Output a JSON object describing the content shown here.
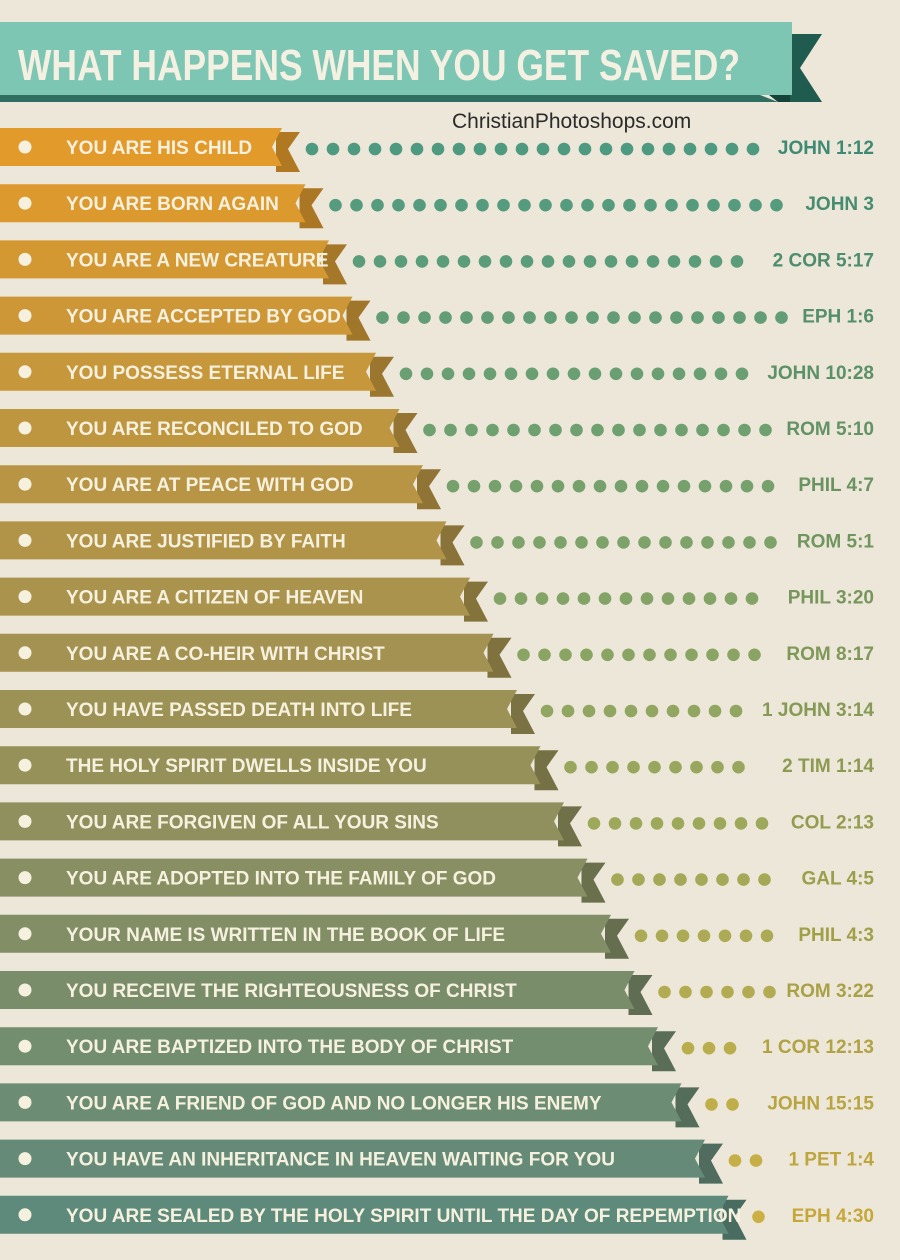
{
  "title": "WHAT HAPPENS WHEN YOU GET SAVED?",
  "credit": "ChristianPhotoshops.com",
  "colors": {
    "background": "#ece7d8",
    "title_ribbon": "#7dc6b4",
    "title_ribbon_dark": "#1f5b4e",
    "title_text": "#f4f0e2",
    "ribbon_top": "#e29a2a",
    "ribbon_bottom": "#5e8a7c",
    "dots_top": "#4e9a80",
    "dots_bottom": "#cdb044",
    "refs_top": "#3f8a74",
    "refs_bottom": "#c6a73a"
  },
  "items": [
    {
      "label": "YOU ARE HIS CHILD",
      "reference": "JOHN 1:12"
    },
    {
      "label": "YOU ARE BORN AGAIN",
      "reference": "JOHN 3"
    },
    {
      "label": "YOU ARE A NEW CREATURE",
      "reference": "2 COR 5:17"
    },
    {
      "label": "YOU ARE ACCEPTED BY GOD",
      "reference": "EPH 1:6"
    },
    {
      "label": "YOU POSSESS ETERNAL LIFE",
      "reference": "JOHN 10:28"
    },
    {
      "label": "YOU ARE RECONCILED TO GOD",
      "reference": "ROM 5:10"
    },
    {
      "label": "YOU ARE AT PEACE WITH GOD",
      "reference": "PHIL 4:7"
    },
    {
      "label": "YOU ARE JUSTIFIED BY FAITH",
      "reference": "ROM 5:1"
    },
    {
      "label": "YOU ARE A CITIZEN OF HEAVEN",
      "reference": "PHIL 3:20"
    },
    {
      "label": "YOU ARE A CO-HEIR WITH CHRIST",
      "reference": "ROM 8:17"
    },
    {
      "label": "YOU HAVE PASSED DEATH INTO LIFE",
      "reference": "1 JOHN 3:14"
    },
    {
      "label": "THE HOLY SPIRIT DWELLS INSIDE YOU",
      "reference": "2 TIM 1:14"
    },
    {
      "label": "YOU ARE FORGIVEN OF ALL YOUR SINS",
      "reference": "COL 2:13"
    },
    {
      "label": "YOU ARE ADOPTED INTO THE FAMILY OF GOD",
      "reference": "GAL 4:5"
    },
    {
      "label": "YOUR NAME IS WRITTEN IN THE BOOK OF LIFE",
      "reference": "PHIL 4:3"
    },
    {
      "label": "YOU RECEIVE THE RIGHTEOUSNESS OF CHRIST",
      "reference": "ROM 3:22"
    },
    {
      "label": "YOU ARE BAPTIZED INTO THE BODY OF CHRIST",
      "reference": "1 COR 12:13"
    },
    {
      "label": "YOU ARE A FRIEND OF GOD AND NO LONGER HIS ENEMY",
      "reference": "JOHN 15:15"
    },
    {
      "label": "YOU HAVE AN INHERITANCE IN HEAVEN WAITING FOR YOU",
      "reference": "1 PET 1:4"
    },
    {
      "label": "YOU ARE SEALED BY THE HOLY SPIRIT UNTIL THE DAY OF REPEMPTION",
      "reference": "EPH 4:30"
    }
  ]
}
